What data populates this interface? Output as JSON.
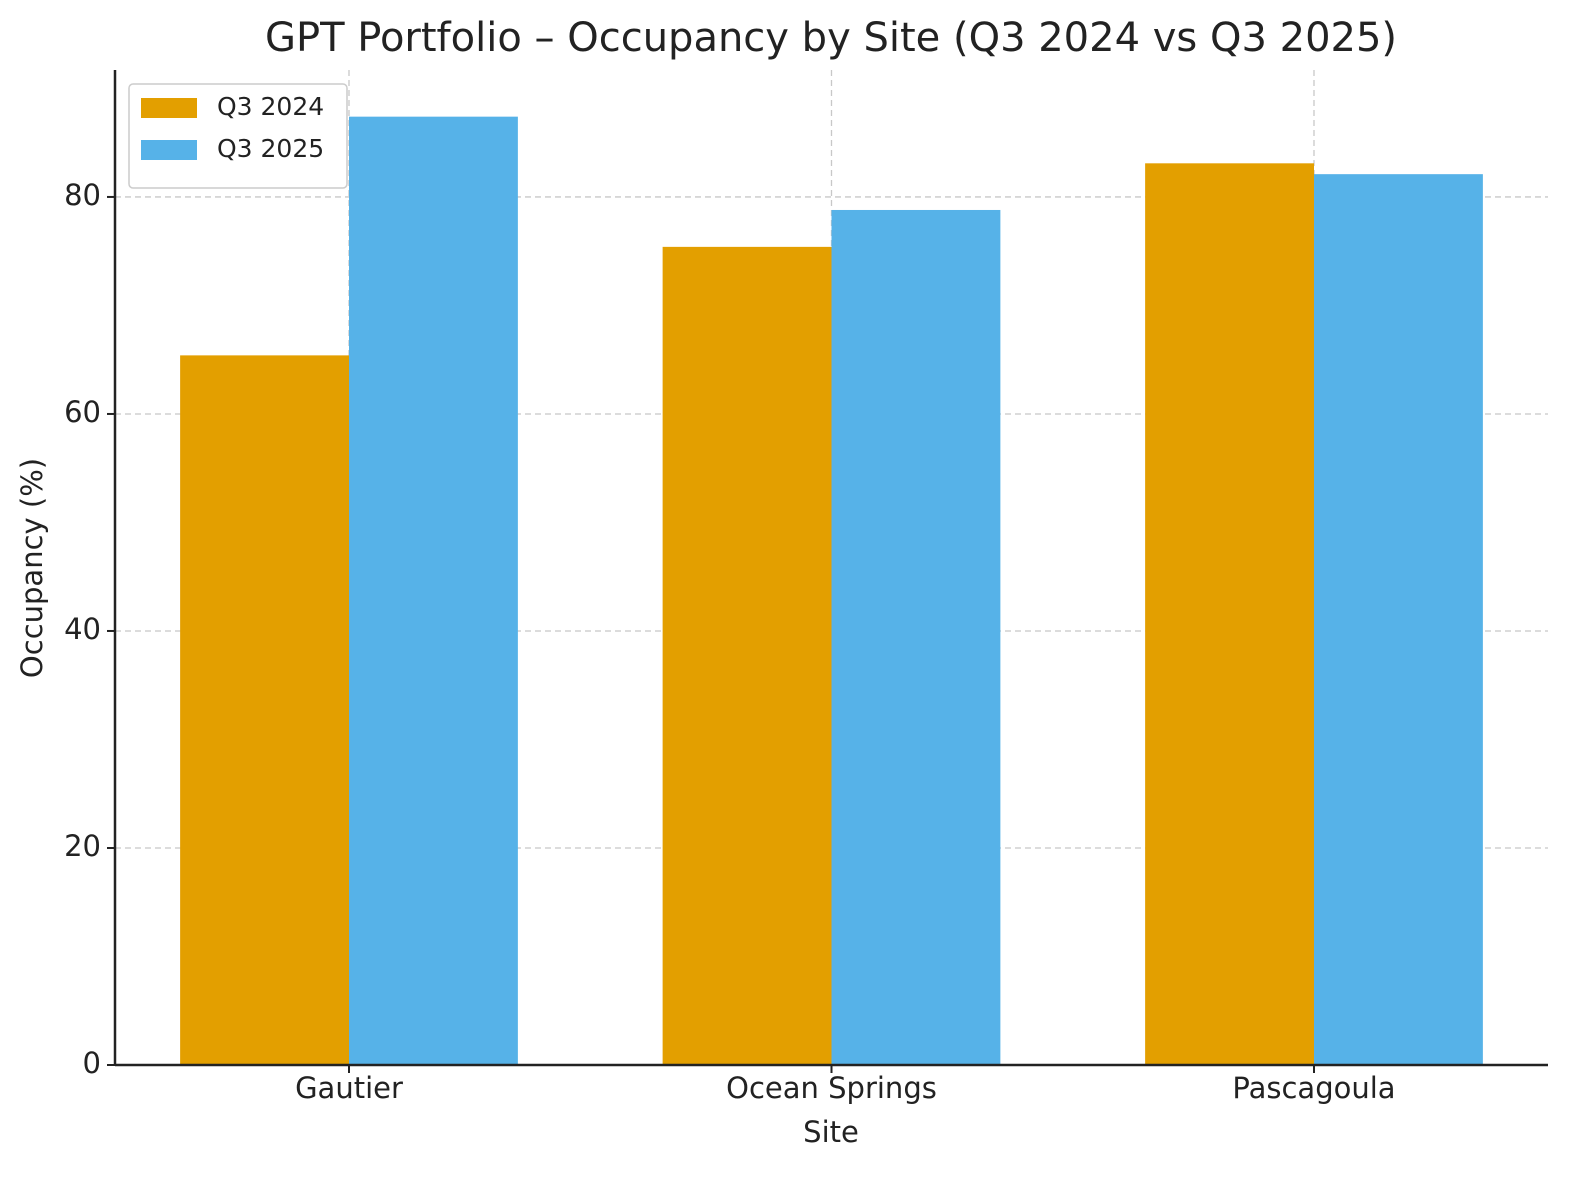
{
  "chart_data": {
    "type": "bar",
    "title": "GPT Portfolio – Occupancy by Site (Q3 2024 vs Q3 2025)",
    "x_label": "Site",
    "y_label": "Occupancy (%)",
    "categories": [
      "Gautier",
      "Ocean Springs",
      "Pascagoula"
    ],
    "series": [
      {
        "name": "Q3 2024",
        "color": "#e39f00",
        "values": [
          65.4,
          75.4,
          83.1
        ]
      },
      {
        "name": "Q3 2025",
        "color": "#56b2e8",
        "values": [
          87.4,
          78.8,
          82.1
        ]
      }
    ],
    "ylim": [
      0,
      91.7
    ],
    "yticks": [
      0,
      20,
      40,
      60,
      80
    ],
    "grid": true,
    "legend": "upper-left"
  }
}
